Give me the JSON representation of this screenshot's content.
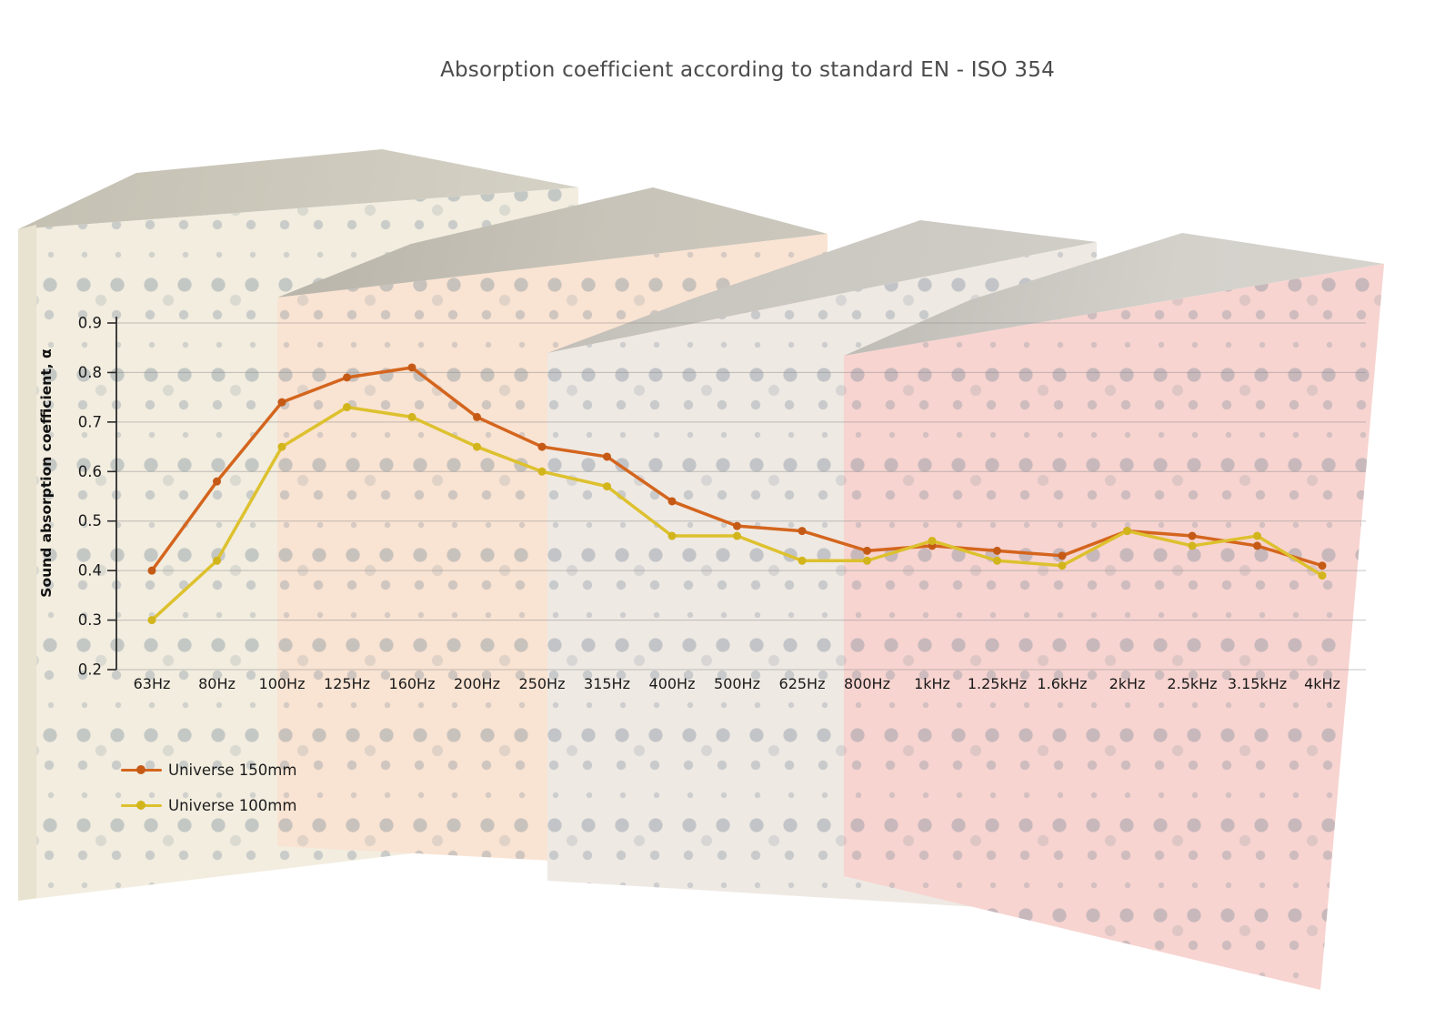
{
  "chart": {
    "title": "Absorption coefficient according to standard EN - ISO 354"
  },
  "chart_data": {
    "type": "line",
    "title": "Absorption coefficient according to standard EN - ISO 354",
    "xlabel": "",
    "ylabel": "Sound absorption coefficient, α",
    "categories": [
      "63Hz",
      "80Hz",
      "100Hz",
      "125Hz",
      "160Hz",
      "200Hz",
      "250Hz",
      "315Hz",
      "400Hz",
      "500Hz",
      "625Hz",
      "800Hz",
      "1kHz",
      "1.25kHz",
      "1.6kHz",
      "2kHz",
      "2.5kHz",
      "3.15kHz",
      "4kHz"
    ],
    "yticks": [
      "0.2",
      "0.3",
      "0.4",
      "0.5",
      "0.6",
      "0.7",
      "0.8",
      "0.9"
    ],
    "ylim": [
      0.2,
      0.9
    ],
    "grid": true,
    "legend_position": "bottom-left",
    "series": [
      {
        "name": "Universe 150mm",
        "color": "#d4651e",
        "marker_color": "#c55a16",
        "values": [
          0.4,
          0.58,
          0.74,
          0.79,
          0.81,
          0.71,
          0.65,
          0.63,
          0.54,
          0.49,
          0.48,
          0.44,
          0.45,
          0.44,
          0.43,
          0.48,
          0.47,
          0.45,
          0.41
        ]
      },
      {
        "name": "Universe 100mm",
        "color": "#ddc12e",
        "marker_color": "#d2b51c",
        "values": [
          0.3,
          0.42,
          0.65,
          0.73,
          0.71,
          0.65,
          0.6,
          0.57,
          0.47,
          0.47,
          0.42,
          0.42,
          0.46,
          0.42,
          0.41,
          0.48,
          0.45,
          0.47,
          0.39
        ]
      }
    ],
    "style": {
      "grid_color": "rgba(140,140,140,0.5)",
      "axis_color": "#2b2b2b",
      "tick_label_color": "#1a1a1a",
      "title_color": "#4b4b4b"
    }
  }
}
